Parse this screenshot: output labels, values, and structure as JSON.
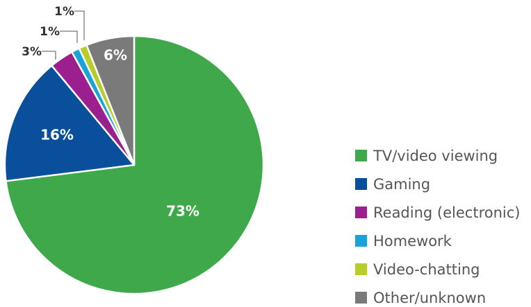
{
  "chart_data": {
    "type": "pie",
    "title": "",
    "legend_position": "right",
    "slices": [
      {
        "label": "TV/video viewing",
        "value": 73,
        "display": "73%",
        "color": "#3fa84a",
        "label_style": "inside"
      },
      {
        "label": "Gaming",
        "value": 16,
        "display": "16%",
        "color": "#0a4f9c",
        "label_style": "inside"
      },
      {
        "label": "Reading (electronic)",
        "value": 3,
        "display": "3%",
        "color": "#9b1f8f",
        "label_style": "outside"
      },
      {
        "label": "Homework",
        "value": 1,
        "display": "1%",
        "color": "#1aa3d9",
        "label_style": "outside"
      },
      {
        "label": "Video-chatting",
        "value": 1,
        "display": "1%",
        "color": "#b8cc2a",
        "label_style": "outside"
      },
      {
        "label": "Other/unknown",
        "value": 6,
        "display": "6%",
        "color": "#7a7a7a",
        "label_style": "inside"
      }
    ]
  }
}
